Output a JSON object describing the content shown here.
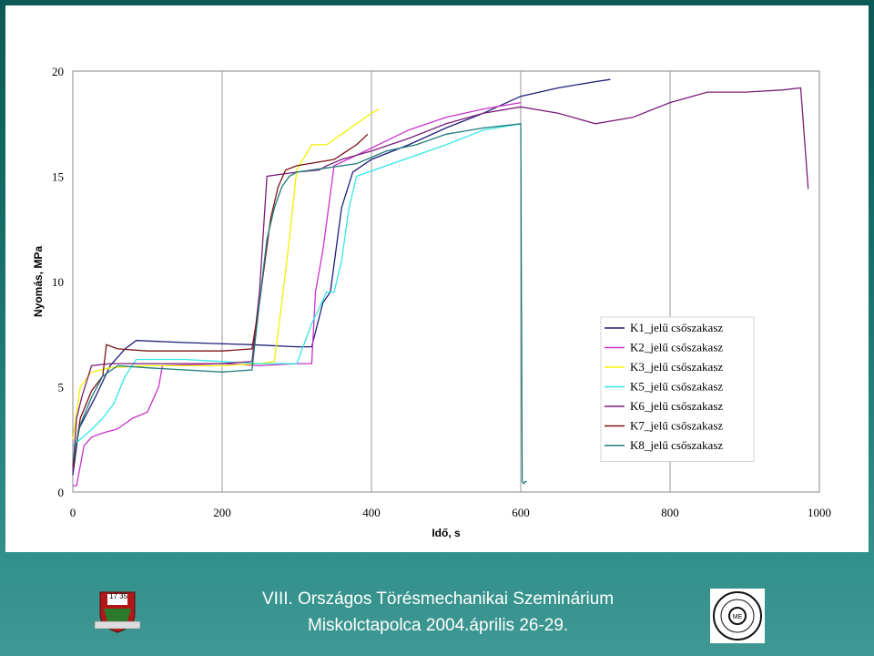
{
  "footer": {
    "line1": "VIII. Országos Törésmechanikai Szeminárium",
    "line2": "Miskolctapolca 2004.április 26-29."
  },
  "logos": {
    "left": {
      "icon": "university-crest-icon",
      "text": "17 35"
    },
    "right": {
      "icon": "department-seal-icon",
      "text": "MECHANIKAI TECHNOLÓGIAI TANSZÉK ME"
    }
  },
  "colors": {
    "plot_background": "#ffffff",
    "K1": "#1f1f7a",
    "K2": "#cc33cc",
    "K3": "#f2f200",
    "K5": "#33e6e6",
    "K6": "#7a1f7a",
    "K7": "#7a1414",
    "K8": "#1f7a7a"
  },
  "chart_data": {
    "type": "line",
    "title": "",
    "xlabel": "Idő, s",
    "ylabel": "Nyomás, MPa",
    "xlim": [
      0,
      1000
    ],
    "ylim": [
      0,
      20
    ],
    "xticks": [
      "0",
      "200",
      "400",
      "600",
      "800",
      "1000"
    ],
    "yticks": [
      "0",
      "5",
      "10",
      "15",
      "20"
    ],
    "grid": "vertical",
    "legend_position": "right-bottom",
    "series": [
      {
        "name": "K1_jelű csőszakasz",
        "x": [
          0,
          8,
          30,
          50,
          70,
          85,
          150,
          240,
          300,
          320,
          335,
          345,
          360,
          375,
          400,
          450,
          500,
          550,
          600,
          650,
          700,
          720
        ],
        "y": [
          0.8,
          3,
          4.5,
          6,
          6.8,
          7.2,
          7.1,
          7.0,
          6.9,
          6.9,
          9.0,
          9.5,
          13.5,
          15.2,
          15.8,
          16.5,
          17.3,
          18.0,
          18.8,
          19.2,
          19.5,
          19.6
        ]
      },
      {
        "name": "K2_jelű csőszakasz",
        "x": [
          0,
          5,
          15,
          25,
          40,
          60,
          80,
          100,
          115,
          120,
          200,
          250,
          300,
          320,
          325,
          335,
          350,
          380,
          450,
          500,
          550,
          600
        ],
        "y": [
          0.3,
          0.3,
          2.2,
          2.6,
          2.8,
          3.0,
          3.5,
          3.8,
          5.0,
          6.0,
          6.1,
          6.0,
          6.1,
          6.1,
          9.5,
          11.5,
          15.5,
          16.0,
          17.2,
          17.8,
          18.2,
          18.5
        ]
      },
      {
        "name": "K3_jelű csőszakasz",
        "x": [
          0,
          10,
          25,
          50,
          100,
          150,
          200,
          250,
          270,
          280,
          290,
          300,
          320,
          340,
          360,
          380,
          400,
          410
        ],
        "y": [
          2.5,
          5.0,
          5.7,
          5.9,
          6.0,
          6.0,
          6.0,
          6.1,
          6.2,
          9.0,
          12.0,
          15.3,
          16.5,
          16.5,
          17.0,
          17.5,
          18.0,
          18.2
        ]
      },
      {
        "name": "K5_jelű csőszakasz",
        "x": [
          0,
          20,
          40,
          55,
          70,
          85,
          150,
          200,
          250,
          300,
          320,
          340,
          350,
          360,
          370,
          380,
          420,
          460,
          500,
          550,
          600
        ],
        "y": [
          2.2,
          2.8,
          3.5,
          4.2,
          5.5,
          6.3,
          6.3,
          6.2,
          6.1,
          6.1,
          8.0,
          9.5,
          9.5,
          11.0,
          13.5,
          15.0,
          15.5,
          16.0,
          16.5,
          17.2,
          17.5
        ]
      },
      {
        "name": "K6_jelű csőszakasz",
        "x": [
          0,
          5,
          12,
          25,
          50,
          100,
          150,
          200,
          240,
          250,
          260,
          300,
          330,
          340,
          360,
          400,
          450,
          500,
          550,
          600,
          650,
          700,
          750,
          800,
          850,
          900,
          950,
          975,
          985
        ],
        "y": [
          1.0,
          3.5,
          4.5,
          6.0,
          6.1,
          6.1,
          6.1,
          6.1,
          6.2,
          9.5,
          15.0,
          15.2,
          15.3,
          15.5,
          15.8,
          16.2,
          16.8,
          17.5,
          18.0,
          18.3,
          18.0,
          17.5,
          17.8,
          18.5,
          19.0,
          19.0,
          19.1,
          19.2,
          14.4
        ]
      },
      {
        "name": "K7_jelű csőszakasz",
        "x": [
          0,
          10,
          25,
          40,
          45,
          60,
          100,
          150,
          200,
          240,
          250,
          265,
          275,
          285,
          300,
          350,
          380,
          395
        ],
        "y": [
          1.2,
          3.5,
          4.8,
          5.5,
          7.0,
          6.8,
          6.7,
          6.7,
          6.7,
          6.8,
          9.0,
          13.0,
          14.5,
          15.3,
          15.5,
          15.8,
          16.5,
          17.0
        ]
      },
      {
        "name": "K8_jelű csőszakasz",
        "x": [
          0,
          10,
          25,
          40,
          60,
          100,
          150,
          200,
          240,
          250,
          260,
          270,
          280,
          290,
          300,
          340,
          380,
          420,
          460,
          500,
          550,
          600,
          602,
          604,
          606,
          608
        ],
        "y": [
          1.5,
          3.2,
          4.5,
          5.5,
          6.0,
          5.9,
          5.8,
          5.7,
          5.8,
          9.0,
          12.0,
          13.5,
          14.5,
          15.0,
          15.2,
          15.4,
          15.6,
          16.2,
          16.5,
          17.0,
          17.3,
          17.5,
          0.5,
          0.4,
          0.5,
          0.5
        ]
      }
    ]
  }
}
